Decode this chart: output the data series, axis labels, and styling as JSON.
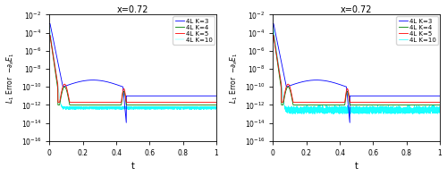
{
  "title": "x=0.72",
  "xlabel": "t",
  "ylim": [
    1e-16,
    0.01
  ],
  "xlim": [
    0,
    1
  ],
  "legend_labels": [
    "4L K=3",
    "4L K=4",
    "4L K=5",
    "4L K=10"
  ],
  "colors_left": [
    "blue",
    "green",
    "red",
    "cyan"
  ],
  "colors_right": [
    "blue",
    "green",
    "red",
    "cyan"
  ],
  "n_points": 3000,
  "seed": 42,
  "background_color": "#ffffff",
  "yticks": [
    1e-16,
    1e-14,
    1e-12,
    1e-10,
    1e-08,
    1e-06,
    0.0001,
    0.01
  ],
  "xticks": [
    0,
    0.2,
    0.4,
    0.6,
    0.8,
    1.0
  ]
}
